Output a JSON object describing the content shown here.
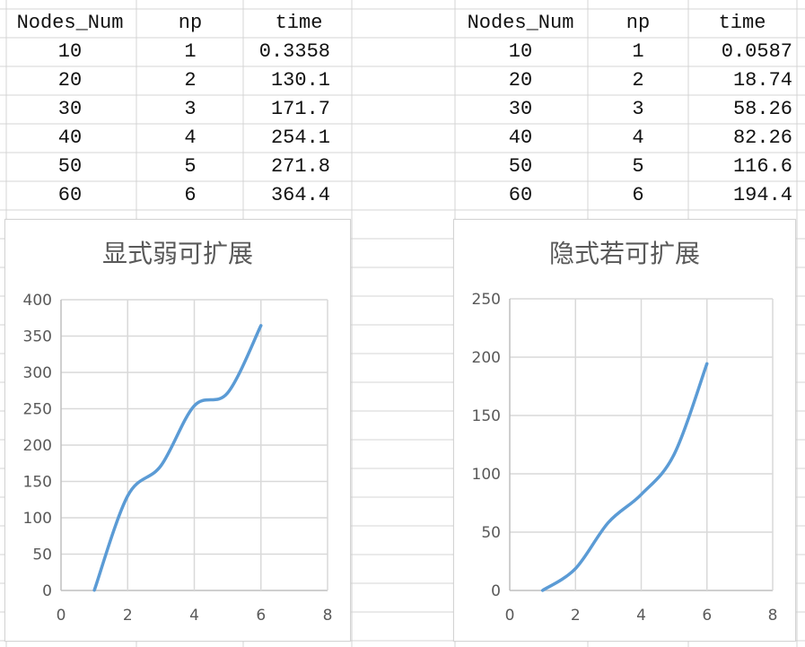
{
  "sheet": {
    "left_table": {
      "headers": [
        "Nodes_Num",
        "np",
        "time"
      ],
      "rows": [
        [
          "10",
          "1",
          "0.3358"
        ],
        [
          "20",
          "2",
          "130.1"
        ],
        [
          "30",
          "3",
          "171.7"
        ],
        [
          "40",
          "4",
          "254.1"
        ],
        [
          "50",
          "5",
          "271.8"
        ],
        [
          "60",
          "6",
          "364.4"
        ]
      ]
    },
    "right_table": {
      "headers": [
        "Nodes_Num",
        "np",
        "time"
      ],
      "rows": [
        [
          "10",
          "1",
          "0.0587"
        ],
        [
          "20",
          "2",
          "18.74"
        ],
        [
          "30",
          "3",
          "58.26"
        ],
        [
          "40",
          "4",
          "82.26"
        ],
        [
          "50",
          "5",
          "116.6"
        ],
        [
          "60",
          "6",
          "194.4"
        ]
      ]
    }
  },
  "colors": {
    "line": "#5b9bd5",
    "grid": "#d9d9d9",
    "axis": "#bfbfbf",
    "tick_text": "#595959",
    "sheet_grid": "#d4d4d4"
  },
  "chart_data": [
    {
      "type": "scatter",
      "style": "smooth-line",
      "title": "显式弱可扩展",
      "xlabel": "",
      "ylabel": "",
      "x": [
        1,
        2,
        3,
        4,
        5,
        6
      ],
      "y": [
        0.3358,
        130.1,
        171.7,
        254.1,
        271.8,
        364.4
      ],
      "xlim": [
        0,
        8
      ],
      "ylim": [
        0,
        400
      ],
      "xticks": [
        "0",
        "2",
        "4",
        "6",
        "8"
      ],
      "yticks": [
        "0",
        "50",
        "100",
        "150",
        "200",
        "250",
        "300",
        "350",
        "400"
      ],
      "grid": true,
      "legend": "none"
    },
    {
      "type": "scatter",
      "style": "smooth-line",
      "title": "隐式若可扩展",
      "xlabel": "",
      "ylabel": "",
      "x": [
        1,
        2,
        3,
        4,
        5,
        6
      ],
      "y": [
        0.0587,
        18.74,
        58.26,
        82.26,
        116.6,
        194.4
      ],
      "xlim": [
        0,
        8
      ],
      "ylim": [
        0,
        250
      ],
      "xticks": [
        "0",
        "2",
        "4",
        "6",
        "8"
      ],
      "yticks": [
        "0",
        "50",
        "100",
        "150",
        "200",
        "250"
      ],
      "grid": true,
      "legend": "none"
    }
  ]
}
